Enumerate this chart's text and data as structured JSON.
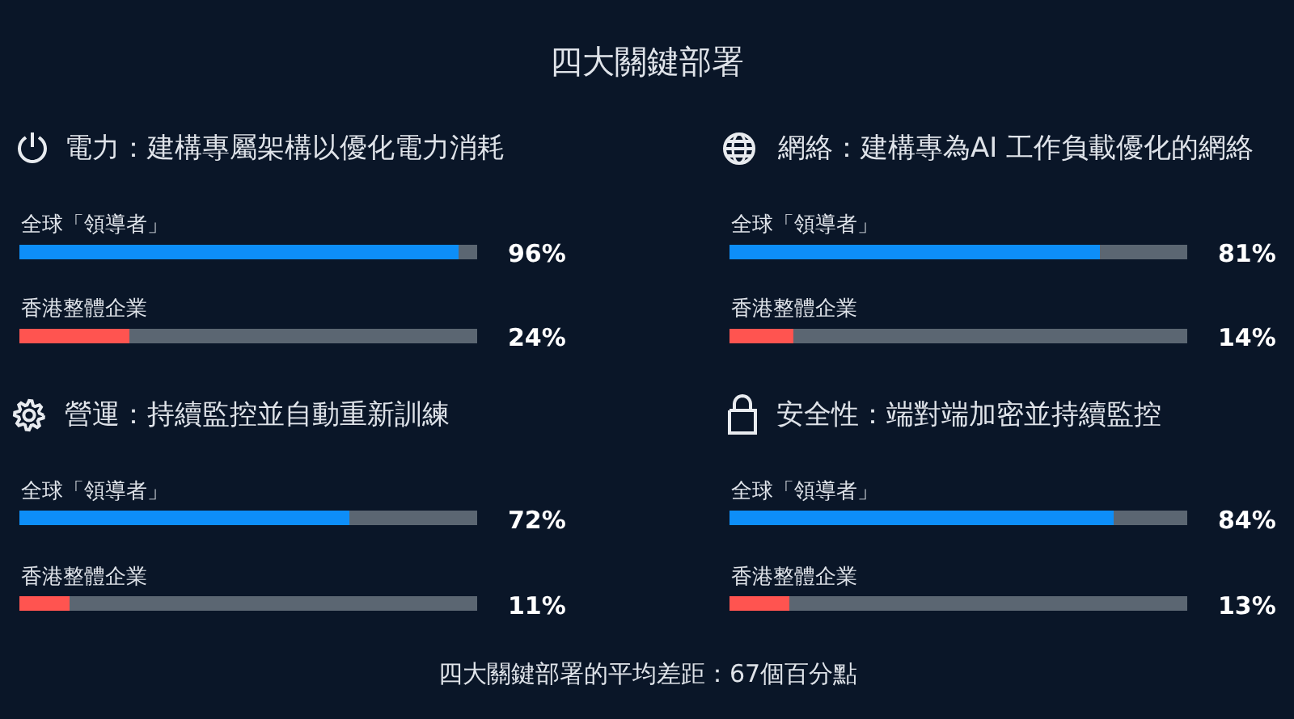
{
  "chart_data": [
    {
      "type": "other",
      "title": "四大關鍵部署",
      "annotations": [
        "四大關鍵部署的平均差距：67個百分點"
      ]
    },
    {
      "type": "bar",
      "orientation": "horizontal",
      "stacked": true,
      "title": "電力：建構專屬架構以優化電力消耗",
      "categories": [
        "全球「領導者」",
        "香港整體企業"
      ],
      "series": [
        {
          "values": [
            96,
            24
          ],
          "colors": [
            "#0d8ef8",
            "#ff5450"
          ],
          "value_labels": [
            "96%",
            "24%"
          ]
        },
        {
          "values": [
            4,
            76
          ],
          "color": "#5b6672"
        }
      ],
      "xlim": [
        0,
        100
      ],
      "tick_labels": "y"
    },
    {
      "type": "bar",
      "orientation": "horizontal",
      "stacked": true,
      "title": "網絡：建構專為AI 工作負載優化的網絡",
      "categories": [
        "全球「領導者」",
        "香港整體企業"
      ],
      "series": [
        {
          "values": [
            81,
            14
          ],
          "colors": [
            "#0d8ef8",
            "#ff5450"
          ],
          "value_labels": [
            "81%",
            "14%"
          ]
        },
        {
          "values": [
            19,
            86
          ],
          "color": "#5b6672"
        }
      ],
      "xlim": [
        0,
        100
      ],
      "tick_labels": "y"
    },
    {
      "type": "bar",
      "orientation": "horizontal",
      "stacked": true,
      "title": "營運：持續監控並自動重新訓練",
      "categories": [
        "全球「領導者」",
        "香港整體企業"
      ],
      "series": [
        {
          "values": [
            72,
            11
          ],
          "colors": [
            "#0d8ef8",
            "#ff5450"
          ],
          "value_labels": [
            "72%",
            "11%"
          ]
        },
        {
          "values": [
            28,
            89
          ],
          "color": "#5b6672"
        }
      ],
      "xlim": [
        0,
        100
      ],
      "tick_labels": "y"
    },
    {
      "type": "bar",
      "orientation": "horizontal",
      "stacked": true,
      "title": "安全性：端對端加密並持續監控",
      "categories": [
        "全球「領導者」",
        "香港整體企業"
      ],
      "series": [
        {
          "values": [
            84,
            13
          ],
          "colors": [
            "#0d8ef8",
            "#ff5450"
          ],
          "value_labels": [
            "84%",
            "13%"
          ]
        },
        {
          "values": [
            16,
            87
          ],
          "color": "#5b6672"
        }
      ],
      "xlim": [
        0,
        100
      ],
      "tick_labels": "y"
    }
  ]
}
